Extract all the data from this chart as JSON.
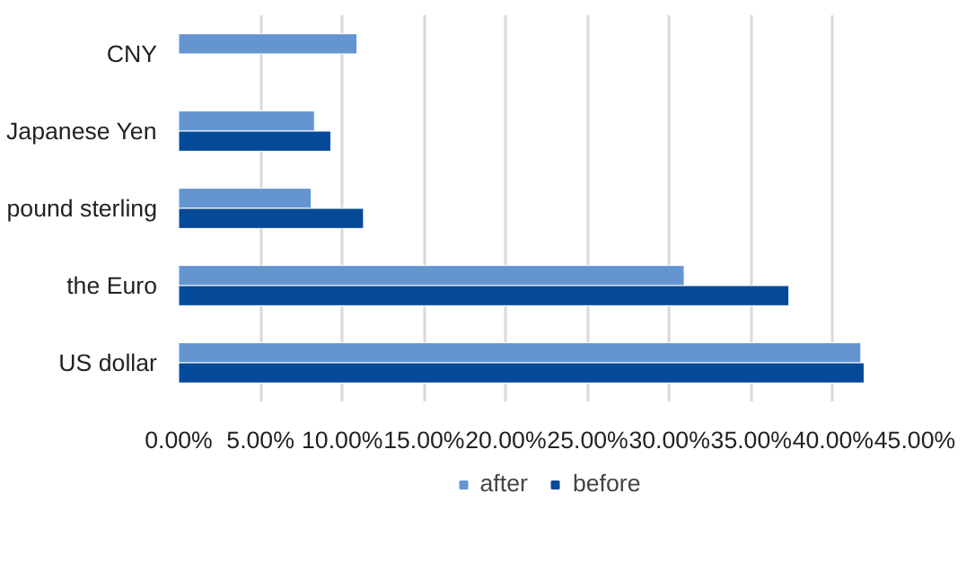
{
  "chart_data": {
    "type": "bar",
    "orientation": "horizontal",
    "categories": [
      "CNY",
      "Japanese Yen",
      "pound sterling",
      "the Euro",
      "US dollar"
    ],
    "series": [
      {
        "name": "after",
        "color": "#6495d0",
        "values": [
          10.9,
          8.3,
          8.1,
          30.9,
          41.7
        ]
      },
      {
        "name": "before",
        "color": "#044a98",
        "values": [
          null,
          9.3,
          11.3,
          37.3,
          41.9
        ]
      }
    ],
    "xlim": [
      0,
      45
    ],
    "xticks": [
      {
        "value": 0,
        "label": "0.00%"
      },
      {
        "value": 5,
        "label": "5.00%"
      },
      {
        "value": 10,
        "label": "10.00%"
      },
      {
        "value": 15,
        "label": "15.00%"
      },
      {
        "value": 20,
        "label": "20.00%"
      },
      {
        "value": 25,
        "label": "25.00%"
      },
      {
        "value": 30,
        "label": "30.00%"
      },
      {
        "value": 35,
        "label": "35.00%"
      },
      {
        "value": 40,
        "label": "40.00%"
      },
      {
        "value": 45,
        "label": "45.00%"
      }
    ],
    "grid": "x",
    "legend": "bottom"
  }
}
